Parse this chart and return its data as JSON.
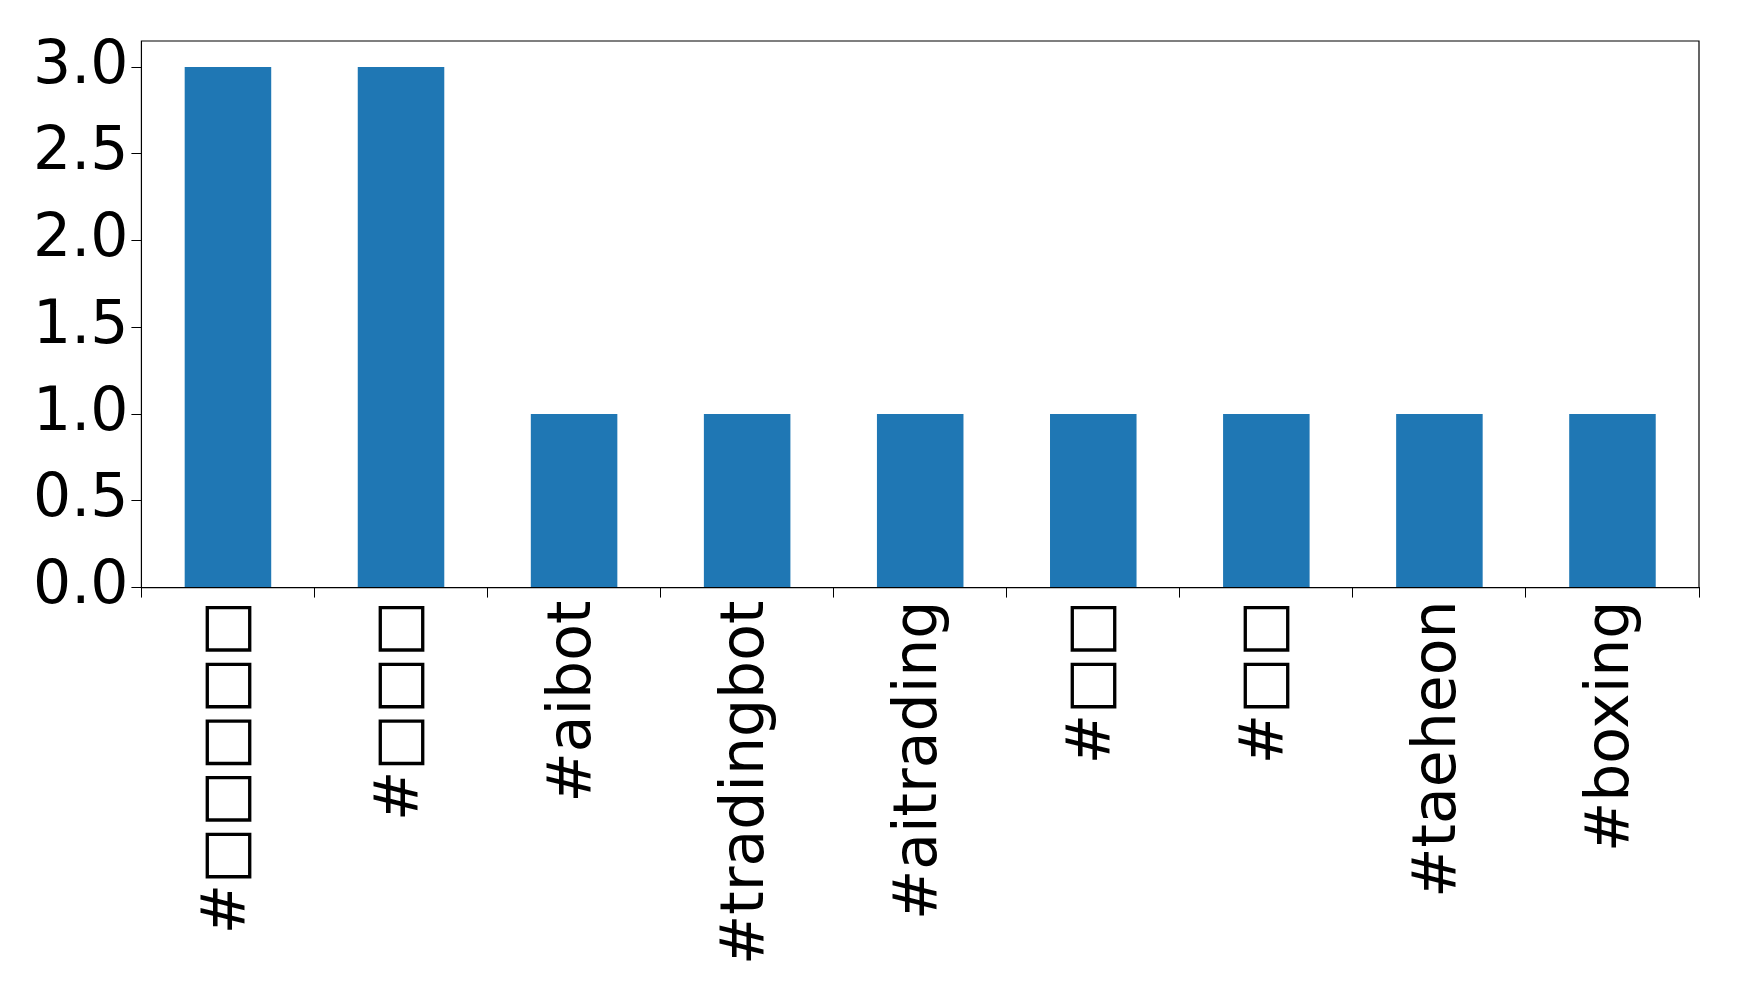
{
  "chart_data": {
    "type": "bar",
    "categories": [
      "#□□□□□",
      "#□□□",
      "#aibot",
      "#tradingbot",
      "#aitrading",
      "#□□",
      "#□□",
      "#taeheon",
      "#boxing"
    ],
    "values": [
      3,
      3,
      1,
      1,
      1,
      1,
      1,
      1,
      1
    ],
    "color": "#1f77b4",
    "ylim": [
      0,
      3.15
    ],
    "yticks": [
      {
        "value": 0,
        "label": "0.0"
      },
      0.5,
      {
        "value": 1,
        "label": "1.0"
      },
      1.5,
      {
        "value": 2,
        "label": "2.0"
      },
      2.5,
      {
        "value": 3,
        "label": "3.0"
      }
    ],
    "grid": false,
    "legend": false
  }
}
